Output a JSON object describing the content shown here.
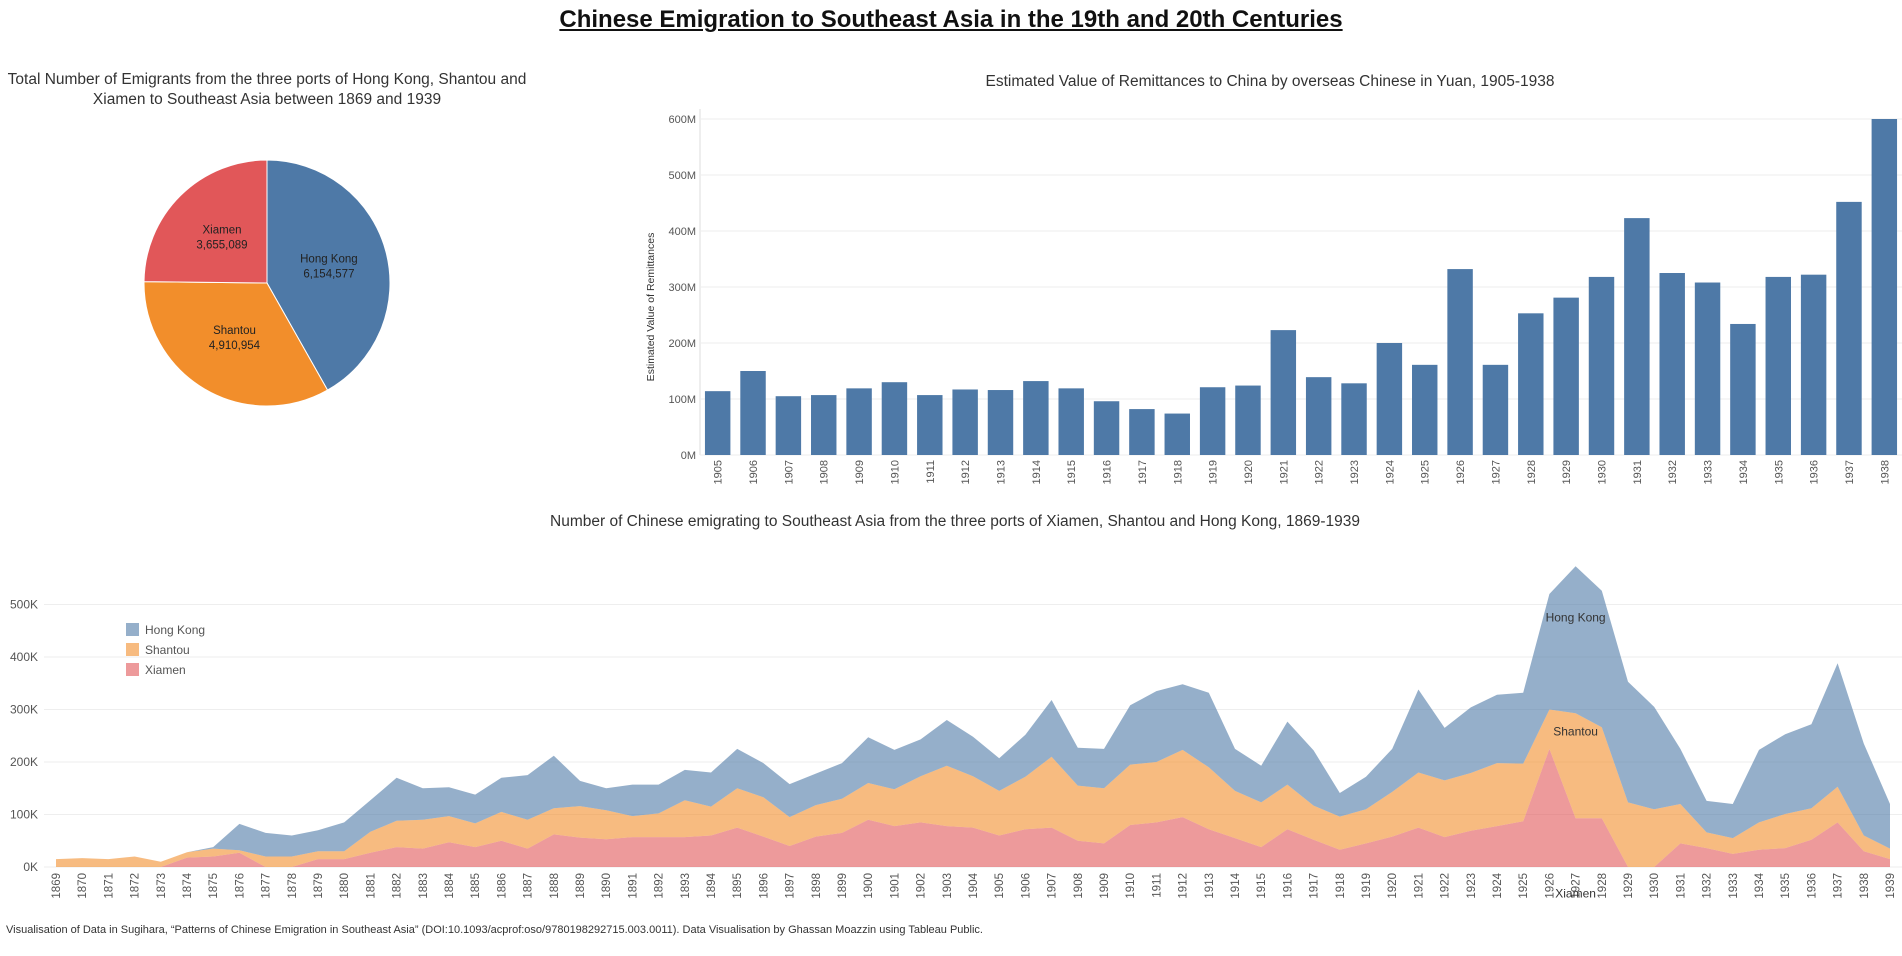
{
  "page": {
    "title": "Chinese Emigration to Southeast Asia in the 19th  and 20th Centuries",
    "footer": "Visualisation of Data in Sugihara, “Patterns of Chinese Emigration in Southeast Asia” (DOI:10.1093/acprof:oso/9780198292715.003.0011). Data Visualisation by Ghassan Moazzin using Tableau Public."
  },
  "colors": {
    "hong_kong": "#4e79a7",
    "shantou": "#f28e2b",
    "xiamen": "#e15759"
  },
  "chart_data": [
    {
      "type": "pie",
      "title": "Total Number of Emigrants from the three ports of Hong Kong, Shantou and Xiamen to Southeast Asia between 1869 and 1939",
      "slices": [
        {
          "name": "Hong Kong",
          "value": 6154577,
          "value_label": "6,154,577",
          "color": "#4e79a7"
        },
        {
          "name": "Shantou",
          "value": 4910954,
          "value_label": "4,910,954",
          "color": "#f28e2b"
        },
        {
          "name": "Xiamen",
          "value": 3655089,
          "value_label": "3,655,089",
          "color": "#e15759"
        }
      ]
    },
    {
      "type": "bar",
      "title": "Estimated Value of Remittances to China by overseas Chinese in Yuan, 1905-1938",
      "ylabel": "Estimated Value of Remittances",
      "xlabel": "",
      "ylim": [
        0,
        600
      ],
      "yticks": [
        0,
        100,
        200,
        300,
        400,
        500,
        600
      ],
      "ytick_labels": [
        "0M",
        "100M",
        "200M",
        "300M",
        "400M",
        "500M",
        "600M"
      ],
      "categories": [
        "1905",
        "1906",
        "1907",
        "1908",
        "1909",
        "1910",
        "1911",
        "1912",
        "1913",
        "1914",
        "1915",
        "1916",
        "1917",
        "1918",
        "1919",
        "1920",
        "1921",
        "1922",
        "1923",
        "1924",
        "1925",
        "1926",
        "1927",
        "1928",
        "1929",
        "1930",
        "1931",
        "1932",
        "1933",
        "1934",
        "1935",
        "1936",
        "1937",
        "1938"
      ],
      "values": [
        114,
        150,
        105,
        107,
        119,
        130,
        107,
        117,
        116,
        132,
        119,
        96,
        82,
        74,
        121,
        124,
        223,
        139,
        128,
        200,
        161,
        332,
        161,
        253,
        281,
        318,
        423,
        325,
        308,
        234,
        318,
        322,
        452,
        600
      ],
      "color": "#4e79a7"
    },
    {
      "type": "area",
      "stacked": true,
      "title": "Number of Chinese emigrating to Southeast Asia from the three ports of Xiamen, Shantou and Hong Kong, 1869-1939",
      "ylim": [
        0,
        600
      ],
      "yticks": [
        0,
        100,
        200,
        300,
        400,
        500
      ],
      "ytick_labels": [
        "0K",
        "100K",
        "200K",
        "300K",
        "400K",
        "500K"
      ],
      "units": "thousands",
      "legend_position": "top-left",
      "x": [
        "1869",
        "1870",
        "1871",
        "1872",
        "1873",
        "1874",
        "1875",
        "1876",
        "1877",
        "1878",
        "1879",
        "1880",
        "1881",
        "1882",
        "1883",
        "1884",
        "1885",
        "1886",
        "1887",
        "1888",
        "1889",
        "1890",
        "1891",
        "1892",
        "1893",
        "1894",
        "1895",
        "1896",
        "1897",
        "1898",
        "1899",
        "1900",
        "1901",
        "1902",
        "1903",
        "1904",
        "1905",
        "1906",
        "1907",
        "1908",
        "1909",
        "1910",
        "1911",
        "1912",
        "1913",
        "1914",
        "1915",
        "1916",
        "1917",
        "1918",
        "1919",
        "1920",
        "1921",
        "1922",
        "1923",
        "1924",
        "1925",
        "1926",
        "1927",
        "1928",
        "1929",
        "1930",
        "1931",
        "1932",
        "1933",
        "1934",
        "1935",
        "1936",
        "1937",
        "1938",
        "1939"
      ],
      "series": [
        {
          "name": "Xiamen",
          "label": "Xiamen",
          "color": "#e15759",
          "values": [
            0,
            0,
            0,
            0,
            0,
            18,
            20,
            27,
            0,
            0,
            15,
            15,
            27,
            38,
            35,
            47,
            38,
            50,
            35,
            62,
            56,
            53,
            57,
            57,
            57,
            60,
            75,
            58,
            40,
            58,
            65,
            90,
            78,
            85,
            78,
            75,
            60,
            72,
            75,
            50,
            45,
            80,
            85,
            95,
            72,
            55,
            38,
            72,
            52,
            33,
            45,
            58,
            75,
            57,
            69,
            78,
            87,
            225,
            93,
            93,
            0,
            0,
            45,
            36,
            25,
            33,
            36,
            52,
            85,
            30,
            15
          ]
        },
        {
          "name": "Shantou",
          "label": "Shantou",
          "color": "#f28e2b",
          "values": [
            15,
            17,
            15,
            20,
            10,
            10,
            15,
            5,
            20,
            20,
            15,
            15,
            40,
            50,
            55,
            50,
            45,
            55,
            55,
            50,
            60,
            55,
            40,
            45,
            70,
            55,
            75,
            75,
            55,
            60,
            65,
            70,
            70,
            88,
            115,
            98,
            85,
            100,
            135,
            105,
            105,
            115,
            115,
            128,
            118,
            90,
            85,
            85,
            65,
            63,
            65,
            85,
            105,
            108,
            110,
            120,
            110,
            75,
            200,
            173,
            123,
            110,
            75,
            30,
            30,
            52,
            65,
            60,
            68,
            30,
            20
          ]
        },
        {
          "name": "Hong Kong",
          "label": "Hong Kong",
          "color": "#4e79a7",
          "values": [
            0,
            0,
            0,
            0,
            0,
            0,
            3,
            50,
            45,
            40,
            40,
            55,
            60,
            82,
            60,
            55,
            55,
            65,
            85,
            100,
            48,
            42,
            60,
            55,
            58,
            65,
            75,
            65,
            63,
            60,
            68,
            87,
            75,
            70,
            87,
            75,
            62,
            80,
            108,
            72,
            75,
            113,
            135,
            125,
            142,
            80,
            70,
            120,
            105,
            45,
            62,
            82,
            158,
            100,
            125,
            130,
            135,
            220,
            280,
            260,
            230,
            195,
            105,
            60,
            65,
            138,
            152,
            160,
            235,
            175,
            85
          ]
        }
      ]
    }
  ]
}
